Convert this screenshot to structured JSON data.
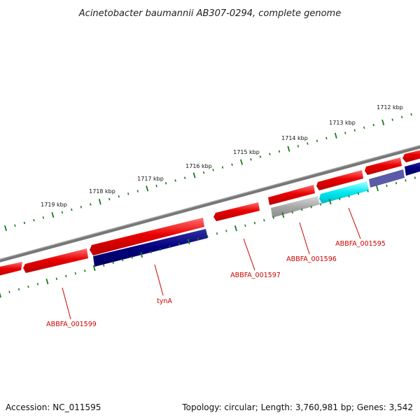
{
  "title": "Acinetobacter baumannii AB307-0294, complete genome",
  "footer": {
    "accession": "Accession: NC_011595",
    "summary": "Topology: circular; Length: 3,760,981 bp; Genes: 3,542"
  },
  "kbp_labels": [
    "1712 kbp",
    "1713 kbp",
    "1714 kbp",
    "1715 kbp",
    "1716 kbp",
    "1717 kbp",
    "1718 kbp",
    "1719 kbp"
  ],
  "gene_labels": [
    "ABBFA_001595",
    "ABBFA_001596",
    "ABBFA_001597",
    "tynA",
    "ABBFA_001599"
  ],
  "colors": {
    "forward_gene": "#e80000",
    "reverse_gene": "#000080",
    "pseudo_gene": "#a8a8a8",
    "highlight_gene": "#00e8f0",
    "backbone": "#777777",
    "tick_dots": "#1a7a1a",
    "label_red": "#cc0000"
  }
}
